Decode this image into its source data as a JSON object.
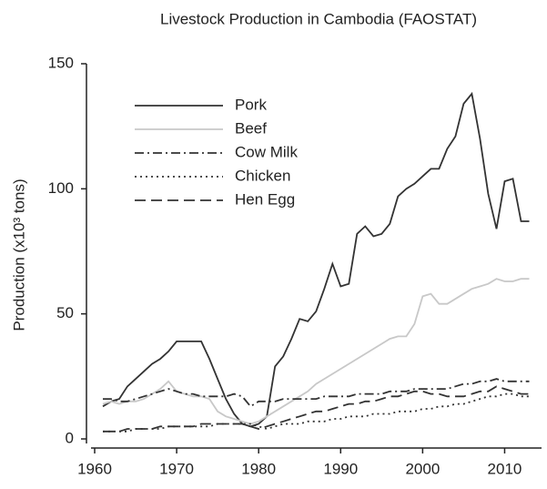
{
  "chart_data": {
    "type": "line",
    "title": "Livestock Production in Cambodia (FAOSTAT)",
    "y_label": "Production (x10³ tons)",
    "x": [
      1961,
      1962,
      1963,
      1964,
      1965,
      1966,
      1967,
      1968,
      1969,
      1970,
      1971,
      1972,
      1973,
      1974,
      1975,
      1976,
      1977,
      1978,
      1979,
      1980,
      1981,
      1982,
      1983,
      1984,
      1985,
      1986,
      1987,
      1988,
      1989,
      1990,
      1991,
      1992,
      1993,
      1994,
      1995,
      1996,
      1997,
      1998,
      1999,
      2000,
      2001,
      2002,
      2003,
      2004,
      2005,
      2006,
      2007,
      2008,
      2009,
      2010,
      2011,
      2012,
      2013
    ],
    "series": [
      {
        "name": "Pork",
        "color": "#333333",
        "dash": "solid",
        "values": [
          13,
          15,
          16,
          21,
          24,
          27,
          30,
          32,
          35,
          39,
          39,
          39,
          39,
          32,
          24,
          16,
          10,
          6,
          5,
          6,
          9,
          29,
          33,
          40,
          48,
          47,
          51,
          60,
          70,
          61,
          62,
          82,
          85,
          81,
          82,
          86,
          97,
          100,
          102,
          105,
          108,
          108,
          116,
          121,
          134,
          138,
          120,
          98,
          84,
          103,
          104,
          87,
          87
        ]
      },
      {
        "name": "Beef",
        "color": "#c8c8c8",
        "dash": "solid",
        "values": [
          14,
          15,
          14,
          15,
          15,
          16,
          18,
          20,
          23,
          19,
          18,
          17,
          17,
          16,
          11,
          9,
          8,
          7,
          6,
          7,
          9,
          11,
          13,
          15,
          17,
          19,
          22,
          24,
          26,
          28,
          30,
          32,
          34,
          36,
          38,
          40,
          41,
          41,
          46,
          57,
          58,
          54,
          54,
          56,
          58,
          60,
          61,
          62,
          64,
          63,
          63,
          64,
          64
        ]
      },
      {
        "name": "Cow Milk",
        "color": "#333333",
        "dash": "dashdot",
        "values": [
          16,
          16,
          15,
          15,
          16,
          17,
          18,
          19,
          20,
          19,
          18,
          18,
          17,
          17,
          17,
          17,
          18,
          17,
          13,
          15,
          15,
          15,
          16,
          16,
          16,
          16,
          16,
          17,
          17,
          17,
          17,
          18,
          18,
          18,
          18,
          19,
          19,
          19,
          20,
          20,
          20,
          20,
          20,
          21,
          22,
          22,
          23,
          23,
          24,
          23,
          23,
          23,
          23
        ]
      },
      {
        "name": "Chicken",
        "color": "#333333",
        "dash": "dotted",
        "values": [
          3,
          3,
          3,
          3,
          4,
          4,
          4,
          4,
          5,
          5,
          5,
          5,
          5,
          5,
          6,
          6,
          6,
          6,
          6,
          5,
          4,
          5,
          6,
          6,
          6,
          7,
          7,
          7,
          8,
          8,
          9,
          9,
          9,
          10,
          10,
          10,
          11,
          11,
          11,
          12,
          12,
          13,
          13,
          14,
          14,
          15,
          16,
          17,
          17,
          18,
          18,
          17,
          17
        ]
      },
      {
        "name": "Hen Egg",
        "color": "#333333",
        "dash": "dashed",
        "values": [
          3,
          3,
          3,
          4,
          4,
          4,
          4,
          5,
          5,
          5,
          5,
          5,
          6,
          6,
          6,
          6,
          6,
          6,
          5,
          4,
          5,
          6,
          7,
          8,
          9,
          10,
          11,
          11,
          12,
          13,
          14,
          14,
          15,
          15,
          16,
          17,
          17,
          18,
          19,
          19,
          18,
          18,
          17,
          17,
          17,
          18,
          19,
          19,
          21,
          20,
          19,
          18,
          18
        ]
      }
    ],
    "xlim": [
      1959,
      2014.5
    ],
    "xticks": [
      1960,
      1970,
      1980,
      1990,
      2000,
      2010
    ],
    "ylim": [
      -2,
      150
    ],
    "yticks": [
      0,
      50,
      100,
      150
    ],
    "grid": false,
    "legend": "upper left"
  }
}
